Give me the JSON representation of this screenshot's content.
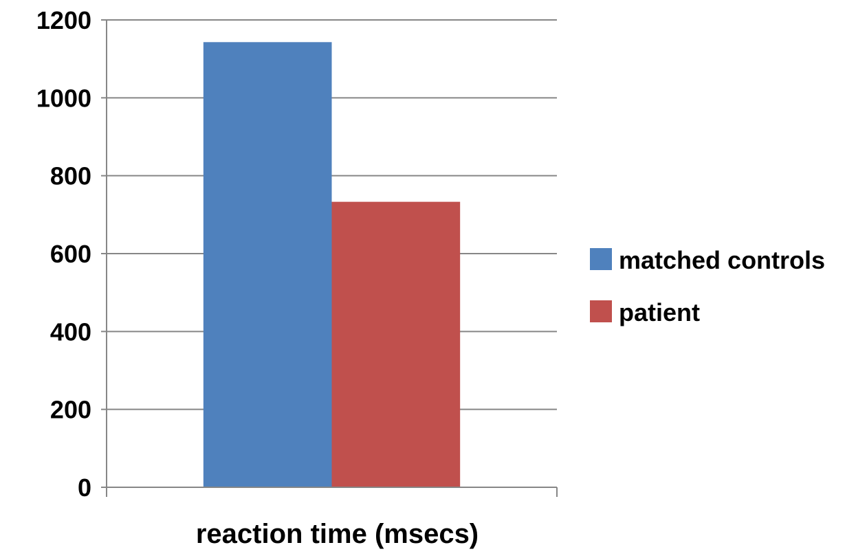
{
  "chart_data": {
    "type": "bar",
    "categories": [
      "reaction time (msecs)"
    ],
    "series": [
      {
        "name": "matched controls",
        "values": [
          1143
        ],
        "color": "#4F81BD"
      },
      {
        "name": "patient",
        "values": [
          733
        ],
        "color": "#C0504D"
      }
    ],
    "ylim": [
      0,
      1200
    ],
    "yticks": [
      0,
      200,
      400,
      600,
      800,
      1000,
      1200
    ],
    "grid": true,
    "legend": "right"
  }
}
